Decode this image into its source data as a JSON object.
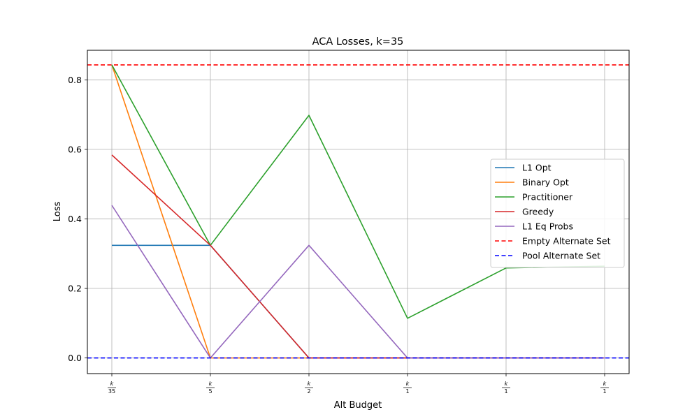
{
  "chart_data": {
    "type": "line",
    "title": "ACA Losses, k=35",
    "xlabel": "Alt Budget",
    "ylabel": "Loss",
    "x_ticks": [
      {
        "num": "k",
        "den": "35"
      },
      {
        "num": "k",
        "den": "5"
      },
      {
        "num": "k",
        "den": "2"
      },
      {
        "num": "k",
        "den": "1"
      },
      {
        "num": "k",
        "den": "1"
      },
      {
        "num": "k",
        "den": "1"
      }
    ],
    "y_ticks": [
      "0.0",
      "0.2",
      "0.4",
      "0.6",
      "0.8"
    ],
    "ylim": [
      -0.045,
      0.885
    ],
    "grid": true,
    "legend_position": "center-right",
    "series": [
      {
        "name": "L1 Opt",
        "color": "#1f77b4",
        "style": "solid",
        "values": [
          0.324,
          0.324,
          0.0,
          0.0,
          0.0,
          0.0
        ]
      },
      {
        "name": "Binary Opt",
        "color": "#ff7f0e",
        "style": "solid",
        "values": [
          0.843,
          0.0,
          0.0,
          0.0,
          0.0,
          0.0
        ]
      },
      {
        "name": "Practitioner",
        "color": "#2ca02c",
        "style": "solid",
        "values": [
          0.843,
          0.324,
          0.698,
          0.114,
          0.259,
          0.264
        ]
      },
      {
        "name": "Greedy",
        "color": "#d62728",
        "style": "solid",
        "values": [
          0.584,
          0.324,
          0.0,
          0.0,
          0.0,
          0.0
        ]
      },
      {
        "name": "L1 Eq Probs",
        "color": "#9467bd",
        "style": "solid",
        "values": [
          0.439,
          0.0,
          0.324,
          0.0,
          0.0,
          0.0
        ]
      }
    ],
    "hlines": [
      {
        "name": "Empty Alternate Set",
        "color": "#ff0000",
        "style": "dashed",
        "value": 0.843
      },
      {
        "name": "Pool Alternate Set",
        "color": "#0000ff",
        "style": "dashed",
        "value": 0.0
      }
    ]
  }
}
